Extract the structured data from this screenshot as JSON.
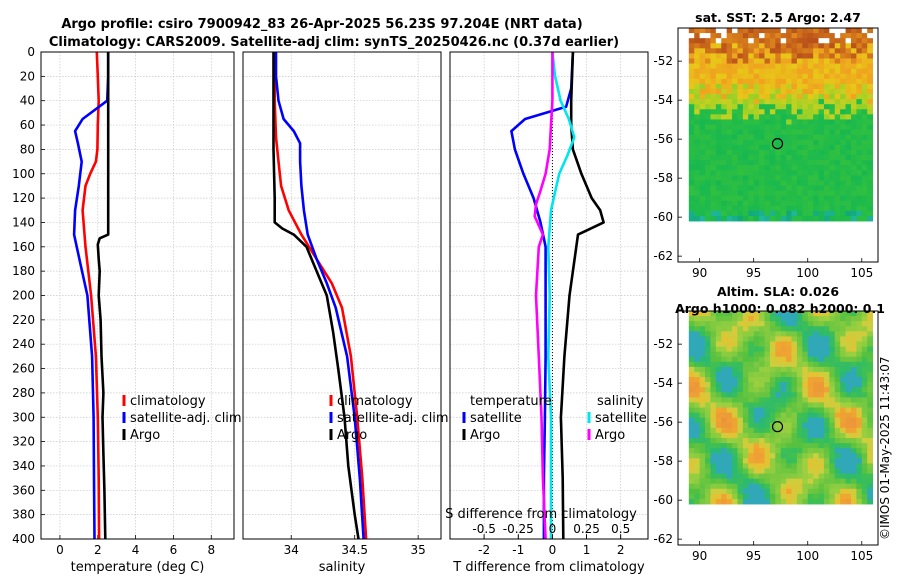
{
  "title": {
    "line1": "Argo profile: csiro 7900942_83 26-Apr-2025 56.23S 97.204E (NRT data)",
    "line2": "Climatology: CARS2009. Satellite-adj clim: synTS_20250426.nc (0.37d earlier)"
  },
  "footer": "©IMOS 01-May-2025 11:43:07",
  "colors": {
    "climatology": "#ff0000",
    "satellite": "#0000ff",
    "argo": "#000000",
    "s_satellite": "#00e5ee",
    "s_argo": "#ff00ff"
  },
  "chart_data": [
    {
      "id": "temperature",
      "type": "line",
      "xlabel": "temperature (deg C)",
      "ylabel": "",
      "xlim": [
        -1,
        9.2
      ],
      "ylim": [
        0,
        400
      ],
      "y_reversed": true,
      "xticks": [
        0,
        2,
        4,
        6,
        8
      ],
      "yticks": [
        0,
        20,
        40,
        60,
        80,
        100,
        120,
        140,
        160,
        180,
        200,
        220,
        240,
        260,
        280,
        300,
        320,
        340,
        360,
        380,
        400
      ],
      "grid": true,
      "legend_labels": [
        "climatology",
        "satellite-adj. clim",
        "Argo"
      ],
      "series": [
        {
          "name": "climatology",
          "color": "#ff0000",
          "depth": [
            0,
            20,
            40,
            60,
            80,
            90,
            100,
            110,
            130,
            160,
            200,
            250,
            300,
            350,
            400
          ],
          "values": [
            1.95,
            2.0,
            2.05,
            2.0,
            1.98,
            1.9,
            1.6,
            1.35,
            1.2,
            1.35,
            1.65,
            1.9,
            2.0,
            2.05,
            2.07
          ]
        },
        {
          "name": "satellite-adj. clim",
          "color": "#0000ff",
          "depth": [
            0,
            20,
            40,
            55,
            65,
            75,
            90,
            110,
            130,
            150,
            175,
            200,
            250,
            300,
            350,
            400
          ],
          "values": [
            2.55,
            2.55,
            2.5,
            1.2,
            0.8,
            0.95,
            1.15,
            1.0,
            0.8,
            0.75,
            1.1,
            1.45,
            1.7,
            1.78,
            1.8,
            1.83
          ]
        },
        {
          "name": "Argo",
          "color": "#000000",
          "depth": [
            0,
            30,
            60,
            90,
            120,
            150,
            153,
            158,
            170,
            180,
            200,
            220,
            250,
            280,
            300,
            330,
            360,
            400
          ],
          "values": [
            2.55,
            2.55,
            2.55,
            2.55,
            2.55,
            2.55,
            2.1,
            2.0,
            2.05,
            2.1,
            2.05,
            2.15,
            2.2,
            2.3,
            2.25,
            2.3,
            2.35,
            2.4
          ]
        }
      ]
    },
    {
      "id": "salinity",
      "type": "line",
      "xlabel": "salinity",
      "ylabel": "",
      "xlim": [
        33.62,
        35.18
      ],
      "ylim": [
        0,
        400
      ],
      "y_reversed": true,
      "xticks": [
        34,
        34.5,
        35
      ],
      "xtick_labels": [
        "34",
        "34.5",
        "35"
      ],
      "grid": true,
      "legend_labels": [
        "climatology",
        "satellite-adj. clim",
        "Argo"
      ],
      "series": [
        {
          "name": "climatology",
          "color": "#ff0000",
          "depth": [
            0,
            40,
            70,
            90,
            110,
            130,
            150,
            170,
            190,
            210,
            250,
            300,
            350,
            400
          ],
          "values": [
            33.87,
            33.87,
            33.88,
            33.9,
            33.92,
            33.98,
            34.08,
            34.2,
            34.32,
            34.4,
            34.47,
            34.52,
            34.56,
            34.59
          ]
        },
        {
          "name": "satellite-adj. clim",
          "color": "#0000ff",
          "depth": [
            0,
            20,
            40,
            55,
            65,
            75,
            90,
            110,
            130,
            150,
            170,
            190,
            210,
            250,
            300,
            350,
            400
          ],
          "values": [
            33.88,
            33.88,
            33.9,
            33.94,
            34.02,
            34.07,
            34.07,
            34.08,
            34.1,
            34.13,
            34.2,
            34.28,
            34.35,
            34.44,
            34.5,
            34.54,
            34.57
          ]
        },
        {
          "name": "Argo",
          "color": "#000000",
          "depth": [
            0,
            40,
            80,
            120,
            140,
            145,
            150,
            160,
            180,
            200,
            230,
            260,
            300,
            340,
            380,
            400
          ],
          "values": [
            33.86,
            33.86,
            33.86,
            33.87,
            33.87,
            33.93,
            34.02,
            34.12,
            34.2,
            34.28,
            34.33,
            34.37,
            34.42,
            34.45,
            34.5,
            34.53
          ]
        }
      ]
    },
    {
      "id": "differences",
      "type": "line",
      "xlabel": "T difference from climatology",
      "top_xlabel": "S difference from climatology",
      "xlim": [
        -3,
        2.8
      ],
      "ylim": [
        0,
        400
      ],
      "y_reversed": true,
      "xticks": [
        -2,
        -1,
        0,
        1,
        2
      ],
      "top_ticks": [
        -0.5,
        -0.25,
        0,
        0.25,
        0.5
      ],
      "top_tick_labels": [
        "-0.5",
        "-0.25",
        "0",
        "0.25",
        "0.5"
      ],
      "s_scale": 4,
      "grid": true,
      "legend": {
        "temperature_header": "temperature",
        "salinity_header": "salinity",
        "t_labels": [
          "satellite",
          "Argo"
        ],
        "s_labels": [
          "satellite",
          "Argo"
        ]
      },
      "series": [
        {
          "name": "T satellite",
          "color": "#0000ff",
          "depth": [
            0,
            30,
            45,
            55,
            65,
            80,
            100,
            120,
            140,
            160,
            180,
            200,
            250,
            300,
            350,
            400
          ],
          "values": [
            0.6,
            0.55,
            0.4,
            -0.8,
            -1.2,
            -1.1,
            -0.85,
            -0.55,
            -0.35,
            -0.2,
            -0.2,
            -0.2,
            -0.2,
            -0.22,
            -0.25,
            -0.25
          ]
        },
        {
          "name": "T Argo",
          "color": "#000000",
          "depth": [
            0,
            40,
            60,
            80,
            100,
            120,
            130,
            140,
            150,
            160,
            200,
            250,
            300,
            350,
            400
          ],
          "values": [
            0.6,
            0.55,
            0.55,
            0.6,
            0.85,
            1.15,
            1.4,
            1.5,
            0.75,
            0.7,
            0.5,
            0.35,
            0.25,
            0.3,
            0.32
          ]
        },
        {
          "name": "S satellite",
          "color": "#00e5ee",
          "depth": [
            0,
            20,
            40,
            55,
            70,
            85,
            100,
            130,
            160,
            200,
            250,
            300,
            400
          ],
          "values": [
            0.0,
            0.02,
            0.06,
            0.12,
            0.16,
            0.11,
            0.05,
            -0.01,
            -0.03,
            -0.02,
            -0.03,
            -0.01,
            -0.01
          ]
        },
        {
          "name": "S Argo",
          "color": "#ff00ff",
          "depth": [
            0,
            40,
            60,
            80,
            100,
            115,
            125,
            135,
            140,
            150,
            160,
            200,
            250,
            300,
            350,
            400
          ],
          "values": [
            0.0,
            0.0,
            -0.01,
            -0.02,
            -0.05,
            -0.09,
            -0.12,
            -0.13,
            -0.11,
            -0.07,
            -0.1,
            -0.12,
            -0.1,
            -0.08,
            -0.07,
            -0.05
          ]
        }
      ]
    },
    {
      "id": "sst_map",
      "type": "heatmap",
      "title": "sat. SST: 2.5 Argo: 2.47",
      "xlim": [
        88,
        106.5
      ],
      "ylim": [
        -62.3,
        -50.3
      ],
      "xticks": [
        90,
        95,
        100,
        105
      ],
      "yticks": [
        -62,
        -60,
        -58,
        -56,
        -54,
        -52
      ],
      "ytick_labels": [
        "-62",
        "-60",
        "-58",
        "-56",
        "-54",
        "-52"
      ],
      "marker": {
        "lon": 97.204,
        "lat": -56.23
      },
      "data_extent": {
        "lon": [
          89,
          106
        ],
        "lat": [
          -60.2,
          -50.3
        ]
      }
    },
    {
      "id": "sla_map",
      "type": "heatmap",
      "title": "Altim. SLA: 0.026",
      "title2": "Argo h1000: 0.082 h2000: 0.1",
      "xlim": [
        88,
        106.5
      ],
      "ylim": [
        -62.3,
        -50.3
      ],
      "xticks": [
        90,
        95,
        100,
        105
      ],
      "yticks": [
        -62,
        -60,
        -58,
        -56,
        -54,
        -52
      ],
      "ytick_labels": [
        "-62",
        "-60",
        "-58",
        "-56",
        "-54",
        "-52"
      ],
      "marker": {
        "lon": 97.204,
        "lat": -56.23
      },
      "data_extent": {
        "lon": [
          89,
          106
        ],
        "lat": [
          -60.2,
          -50.3
        ]
      }
    }
  ]
}
